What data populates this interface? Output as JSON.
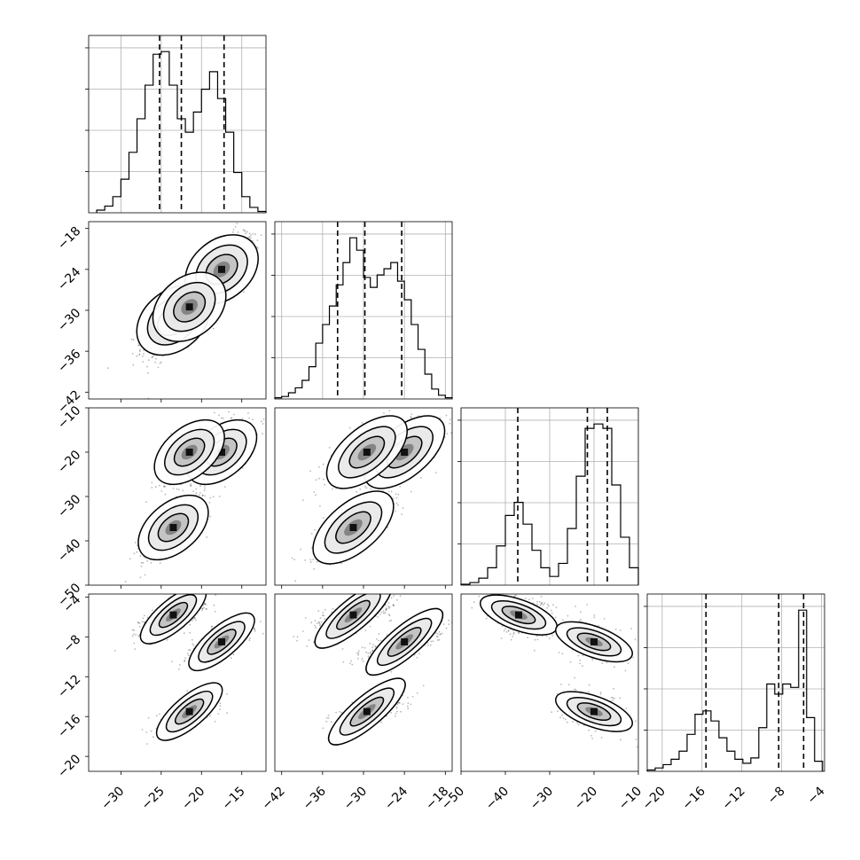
{
  "chart_data": {
    "type": "corner",
    "description_of_layout": "lower-triangular corner plot, 4 parameters",
    "params": [
      {
        "xlim": [
          -34,
          -12
        ],
        "ticks": [
          -30,
          -25,
          -20,
          -15
        ]
      },
      {
        "xlim": [
          -43,
          -17
        ],
        "ticks": [
          -42,
          -36,
          -30,
          -24,
          -18
        ]
      },
      {
        "xlim": [
          -50,
          -10
        ],
        "ticks": [
          -50,
          -40,
          -30,
          -20,
          -10
        ]
      },
      {
        "xlim": [
          -21.5,
          -3.7
        ],
        "ticks": [
          -20,
          -16,
          -12,
          -8,
          -4
        ]
      }
    ],
    "tick_labels": {
      "p0": [
        "−30",
        "−25",
        "−20",
        "−15"
      ],
      "p1": [
        "−42",
        "−36",
        "−30",
        "−24",
        "−18"
      ],
      "p2": [
        "−50",
        "−40",
        "−30",
        "−20",
        "−10"
      ],
      "p3": [
        "−20",
        "−16",
        "−12",
        "−8",
        "−4"
      ]
    },
    "quantiles": [
      [
        -25.2,
        -22.5,
        -17.2
      ],
      [
        -33.8,
        -29.8,
        -24.4
      ],
      [
        -37.2,
        -21.5,
        -17.0
      ],
      [
        -15.6,
        -8.3,
        -5.8
      ]
    ],
    "modes": [
      {
        "x": [
          -23.5,
          -31.5,
          -37.0,
          -5.8
        ],
        "w": 0.4
      },
      {
        "x": [
          -17.5,
          -24.0,
          -20.0,
          -8.5
        ],
        "w": 0.35
      },
      {
        "x": [
          -21.5,
          -29.5,
          -20.0,
          -15.5
        ],
        "w": 0.25
      }
    ],
    "histograms": [
      {
        "bin_edges": [
          -33,
          -32,
          -31,
          -30,
          -29,
          -28,
          -27,
          -26,
          -25,
          -24,
          -23,
          -22,
          -21,
          -20,
          -19,
          -18,
          -17,
          -16,
          -15,
          -14,
          -13,
          -12
        ],
        "counts": [
          2,
          5,
          12,
          25,
          45,
          70,
          95,
          118,
          120,
          95,
          70,
          60,
          75,
          92,
          105,
          85,
          60,
          30,
          12,
          4,
          1
        ]
      },
      {
        "bin_edges": [
          -43,
          -42,
          -41,
          -40,
          -39,
          -38,
          -37,
          -36,
          -35,
          -34,
          -33,
          -32,
          -31,
          -30,
          -29,
          -28,
          -27,
          -26,
          -25,
          -24,
          -23,
          -22,
          -21,
          -20,
          -19,
          -18,
          -17
        ],
        "counts": [
          1,
          2,
          5,
          9,
          15,
          26,
          45,
          60,
          75,
          92,
          110,
          130,
          120,
          98,
          90,
          100,
          105,
          110,
          95,
          80,
          60,
          40,
          20,
          8,
          3,
          1
        ]
      },
      {
        "bin_edges": [
          -50,
          -48,
          -46,
          -44,
          -42,
          -40,
          -38,
          -36,
          -34,
          -32,
          -30,
          -28,
          -26,
          -24,
          -22,
          -20,
          -18,
          -16,
          -14,
          -12,
          -10
        ],
        "counts": [
          1,
          3,
          8,
          20,
          45,
          80,
          95,
          70,
          40,
          20,
          10,
          25,
          65,
          125,
          180,
          185,
          180,
          115,
          55,
          20
        ]
      },
      {
        "bin_edges": [
          -21.5,
          -20.7,
          -19.9,
          -19.1,
          -18.3,
          -17.5,
          -16.7,
          -15.9,
          -15.1,
          -14.3,
          -13.5,
          -12.7,
          -11.9,
          -11.1,
          -10.3,
          -9.5,
          -8.7,
          -7.9,
          -7.1,
          -6.3,
          -5.5,
          -4.7,
          -3.9
        ],
        "counts": [
          2,
          5,
          10,
          18,
          30,
          55,
          85,
          90,
          75,
          50,
          30,
          18,
          12,
          20,
          65,
          130,
          115,
          130,
          125,
          240,
          80,
          15
        ]
      }
    ],
    "pairs": [
      {
        "i": 1,
        "j": 0
      },
      {
        "i": 2,
        "j": 0
      },
      {
        "i": 2,
        "j": 1
      },
      {
        "i": 3,
        "j": 0
      },
      {
        "i": 3,
        "j": 1
      },
      {
        "i": 3,
        "j": 2
      }
    ],
    "colors": {
      "points": "#000000",
      "lines": "#000000",
      "grid": "#b0b0b0"
    },
    "grid": true
  }
}
